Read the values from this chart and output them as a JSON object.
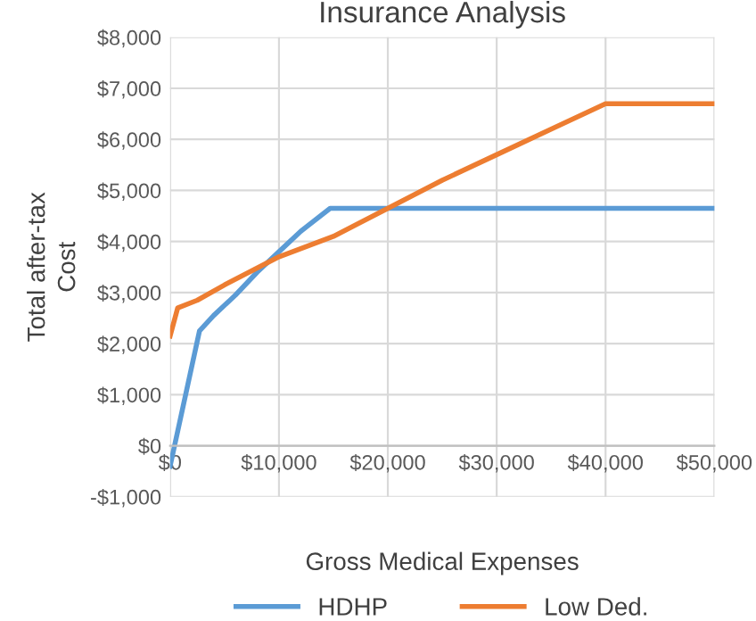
{
  "chart_data": {
    "type": "line",
    "title": "Insurance Analysis",
    "xlabel": "Gross Medical Expenses",
    "ylabel": "Total after-tax\nCost",
    "xlim": [
      0,
      50000
    ],
    "xticks": [
      {
        "value": 0,
        "label": "$0"
      },
      {
        "value": 10000,
        "label": "$10,000"
      },
      {
        "value": 20000,
        "label": "$20,000"
      },
      {
        "value": 30000,
        "label": "$30,000"
      },
      {
        "value": 40000,
        "label": "$40,000"
      },
      {
        "value": 50000,
        "label": "$50,000"
      }
    ],
    "ylim": [
      -1000,
      8000
    ],
    "yticks": [
      {
        "value": -1000,
        "label": "-$1,000"
      },
      {
        "value": 0,
        "label": "$0"
      },
      {
        "value": 1000,
        "label": "$1,000"
      },
      {
        "value": 2000,
        "label": "$2,000"
      },
      {
        "value": 3000,
        "label": "$3,000"
      },
      {
        "value": 4000,
        "label": "$4,000"
      },
      {
        "value": 5000,
        "label": "$5,000"
      },
      {
        "value": 6000,
        "label": "$6,000"
      },
      {
        "value": 7000,
        "label": "$7,000"
      },
      {
        "value": 8000,
        "label": "$8,000"
      }
    ],
    "grid": true,
    "legend": "bottom",
    "marker": "none",
    "line_style": "solid",
    "series": [
      {
        "name": "HDHP",
        "color": "#5b9bd5",
        "x": [
          0,
          2700,
          4000,
          6000,
          8000,
          10000,
          12000,
          14700,
          50000
        ],
        "values": [
          -400,
          2250,
          2550,
          2950,
          3400,
          3800,
          4200,
          4650,
          4650
        ]
      },
      {
        "name": "Low Ded.",
        "color": "#ed7d31",
        "x": [
          0,
          700,
          2500,
          5000,
          10000,
          15000,
          20000,
          25000,
          30000,
          35000,
          40000,
          50000
        ],
        "values": [
          2150,
          2700,
          2850,
          3150,
          3700,
          4100,
          4650,
          5200,
          5700,
          6200,
          6700,
          6700
        ]
      }
    ]
  }
}
